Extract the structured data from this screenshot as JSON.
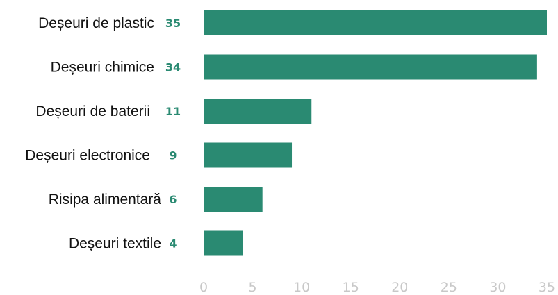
{
  "chart_data": {
    "type": "bar",
    "orientation": "horizontal",
    "categories": [
      "Deșeuri de plastic",
      "Deșeuri chimice",
      "Deșeuri de baterii",
      "Deșeuri electronice",
      "Risipa alimentară",
      "Deșeuri textile"
    ],
    "values": [
      35,
      34,
      11,
      9,
      6,
      4
    ],
    "value_labels": [
      "35",
      "34",
      "11",
      "9",
      "6",
      "4"
    ],
    "x_ticks": [
      "0",
      "5",
      "10",
      "15",
      "20",
      "25",
      "30",
      "35"
    ],
    "xlim": [
      0,
      35
    ],
    "title": "",
    "xlabel": "",
    "ylabel": "",
    "grid": false,
    "legend": "none",
    "colors": {
      "bar": "#2a8a72",
      "value_label": "#2a8a72",
      "tick_label": "#c8c8c8",
      "category_label": "#111111"
    }
  }
}
